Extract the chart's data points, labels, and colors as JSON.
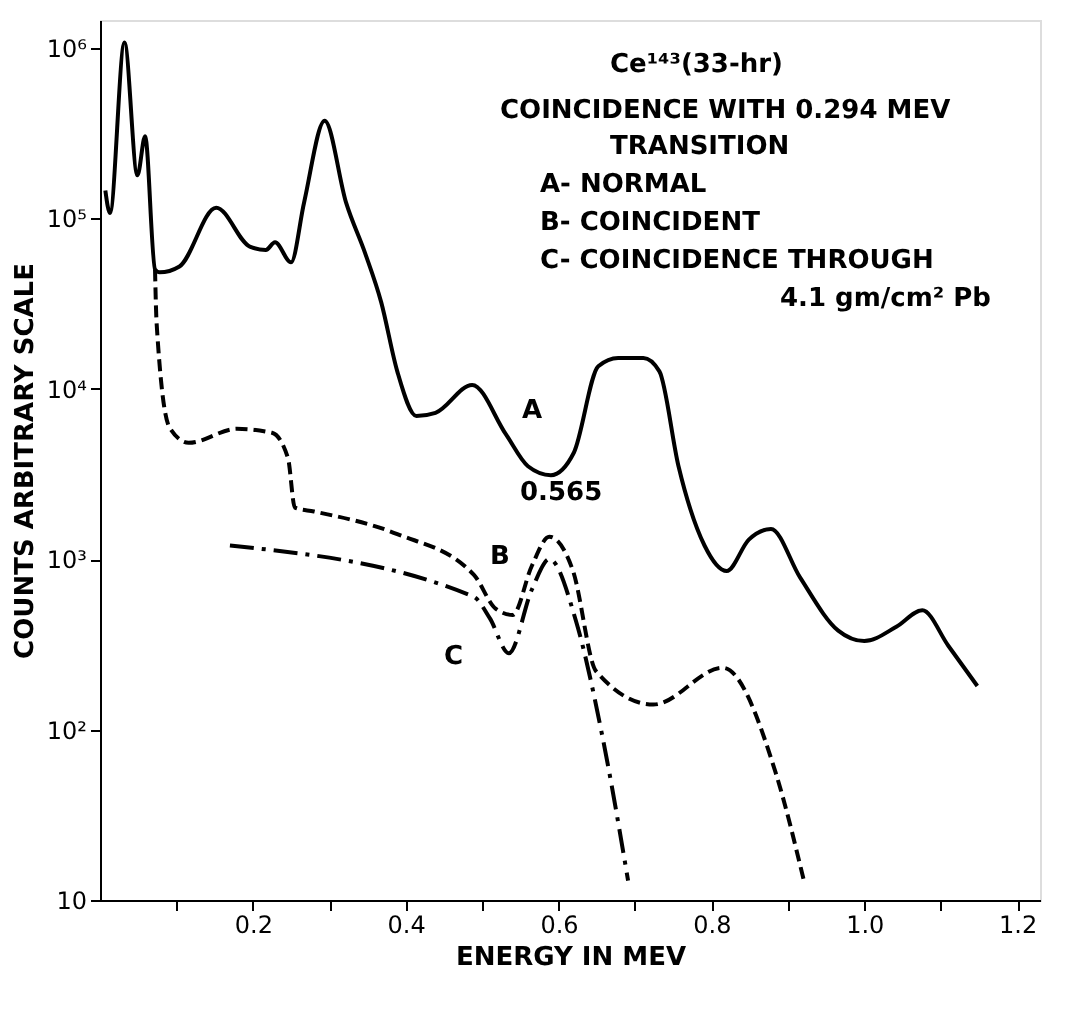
{
  "chart_data": {
    "type": "line",
    "xlabel": "ENERGY IN MEV",
    "ylabel": "COUNTS ARBITRARY SCALE",
    "xlim": [
      0,
      1.23
    ],
    "ylim": [
      10,
      1450000
    ],
    "log": "y",
    "grid": false,
    "xticks": [
      {
        "value": 0.1,
        "label": null
      },
      0.2,
      {
        "value": 0.3,
        "label": null
      },
      0.4,
      {
        "value": 0.5,
        "label": null
      },
      0.6,
      {
        "value": 0.7,
        "label": null
      },
      0.8,
      {
        "value": 0.9,
        "label": null
      },
      {
        "value": 1.0,
        "label": "1.0"
      },
      {
        "value": 1.1,
        "label": null
      },
      1.2
    ],
    "yticks": [
      10,
      {
        "value": 100,
        "label": "10²"
      },
      {
        "value": 1000,
        "label": "10³"
      },
      {
        "value": 10000,
        "label": "10⁴"
      },
      {
        "value": 100000,
        "label": "10⁵"
      },
      {
        "value": 1000000,
        "label": "10⁶"
      }
    ],
    "series": [
      {
        "color": "#000000",
        "line_style": "solid",
        "x": [
          0.007,
          0.013,
          0.032,
          0.049,
          0.059,
          0.072,
          0.078,
          0.104,
          0.152,
          0.196,
          0.217,
          0.229,
          0.25,
          0.267,
          0.294,
          0.322,
          0.347,
          0.368,
          0.389,
          0.414,
          0.439,
          0.487,
          0.531,
          0.56,
          0.59,
          0.62,
          0.652,
          0.678,
          0.711,
          0.732,
          0.757,
          0.791,
          0.82,
          0.849,
          0.878,
          0.916,
          0.966,
          1.0,
          1.042,
          1.076,
          1.11,
          1.148
        ],
        "values": [
          145000,
          107000,
          1070000,
          178000,
          302000,
          50000,
          48000,
          52000,
          115000,
          68000,
          65000,
          72000,
          55000,
          123000,
          372000,
          123000,
          62000,
          32000,
          12600,
          6900,
          7200,
          10500,
          5400,
          3500,
          3100,
          4200,
          13500,
          15100,
          15100,
          12600,
          3500,
          1200,
          850,
          1300,
          1500,
          780,
          380,
          330,
          400,
          500,
          310,
          180
        ]
      },
      {
        "color": "#000000",
        "line_style": "dashed",
        "x": [
          0.072,
          0.074,
          0.091,
          0.116,
          0.179,
          0.225,
          0.246,
          0.255,
          0.28,
          0.389,
          0.489,
          0.518,
          0.54,
          0.565,
          0.588,
          0.619,
          0.649,
          0.724,
          0.815,
          0.884,
          0.921
        ],
        "values": [
          50000,
          24500,
          5900,
          4800,
          5800,
          5500,
          3900,
          2000,
          1900,
          1400,
          810,
          510,
          470,
          910,
          1350,
          850,
          220,
          140,
          230,
          56,
          13
        ]
      },
      {
        "color": "#000000",
        "line_style": "dashdot",
        "x": [
          0.17,
          0.489,
          0.51,
          0.535,
          0.565,
          0.588,
          0.623,
          0.657,
          0.691
        ],
        "values": [
          1200,
          600,
          450,
          280,
          660,
          1000,
          430,
          93,
          13
        ]
      }
    ],
    "annotations": [
      "A",
      "B",
      "C",
      "0.565",
      "Ce¹⁴³(33-hr)",
      "COINCIDENCE WITH 0.294 MEV",
      "TRANSITION",
      "A- NORMAL",
      "B- COINCIDENT",
      "C- COINCIDENCE THROUGH",
      "4.1 gm/cm² Pb"
    ]
  }
}
